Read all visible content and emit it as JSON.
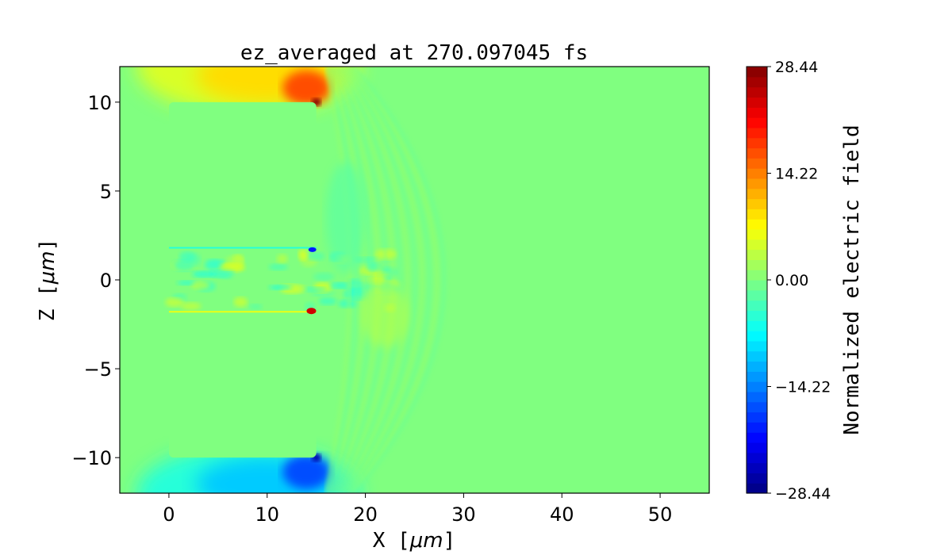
{
  "chart_data": {
    "type": "heatmap",
    "title": "ez_averaged at 270.097045 fs",
    "xlabel": "X [μm]",
    "ylabel": "Z [μm]",
    "xlabel_parts": {
      "prefix": "X [",
      "unit": "μm",
      "suffix": "]"
    },
    "ylabel_parts": {
      "prefix": "Z [",
      "unit": "μm",
      "suffix": "]"
    },
    "xlim": [
      -5,
      55
    ],
    "ylim": [
      -12,
      12
    ],
    "xticks": [
      0,
      10,
      20,
      30,
      40,
      50
    ],
    "xtick_labels": [
      "0",
      "10",
      "20",
      "30",
      "40",
      "50"
    ],
    "yticks": [
      -10,
      -5,
      0,
      5,
      10
    ],
    "ytick_labels": [
      "−10",
      "−5",
      "0",
      "5",
      "10"
    ],
    "colormap": "jet",
    "colorbar": {
      "label": "Normalized electric field",
      "range": [
        -28.44,
        28.44
      ],
      "ticks": [
        -28.44,
        -14.22,
        0.0,
        14.22,
        28.44
      ],
      "tick_labels": [
        "−28.44",
        "−14.22",
        "0.00",
        "14.22",
        "28.44"
      ],
      "levels": 42
    },
    "grid": false
  }
}
